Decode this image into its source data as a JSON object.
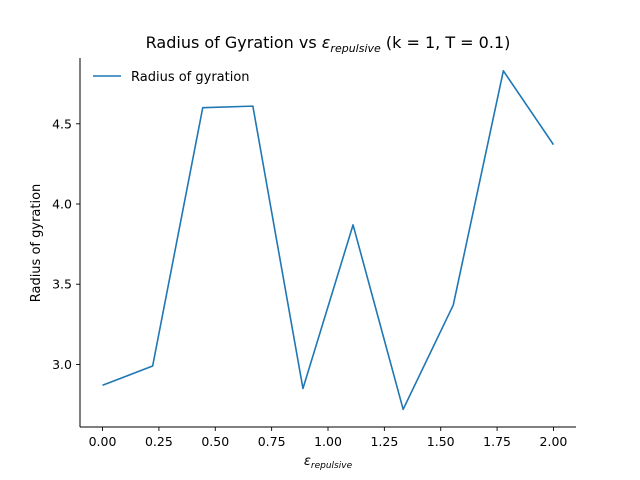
{
  "chart_data": {
    "type": "line",
    "title_prefix": "Radius of Gyration vs ",
    "title_symbol": "ε",
    "title_subscript": "repulsive",
    "title_suffix": " (k = 1, T = 0.1)",
    "xlabel_symbol": "ε",
    "xlabel_subscript": "repulsive",
    "ylabel": "Radius of gyration",
    "xlim": [
      -0.1,
      2.1
    ],
    "ylim": [
      2.61,
      4.91
    ],
    "x_ticks": [
      "0.00",
      "0.25",
      "0.50",
      "0.75",
      "1.00",
      "1.25",
      "1.50",
      "1.75",
      "2.00"
    ],
    "y_ticks": [
      "3.0",
      "3.5",
      "4.0",
      "4.5"
    ],
    "grid": false,
    "legend_placement": "top-left",
    "series": [
      {
        "name": "Radius of gyration",
        "color": "#1f77b4",
        "x": [
          0.0,
          0.2222,
          0.4444,
          0.6667,
          0.8889,
          1.1111,
          1.3333,
          1.5556,
          1.7778,
          2.0
        ],
        "y": [
          2.87,
          2.99,
          4.6,
          4.61,
          2.85,
          3.87,
          2.72,
          3.37,
          4.83,
          4.37
        ]
      }
    ]
  }
}
